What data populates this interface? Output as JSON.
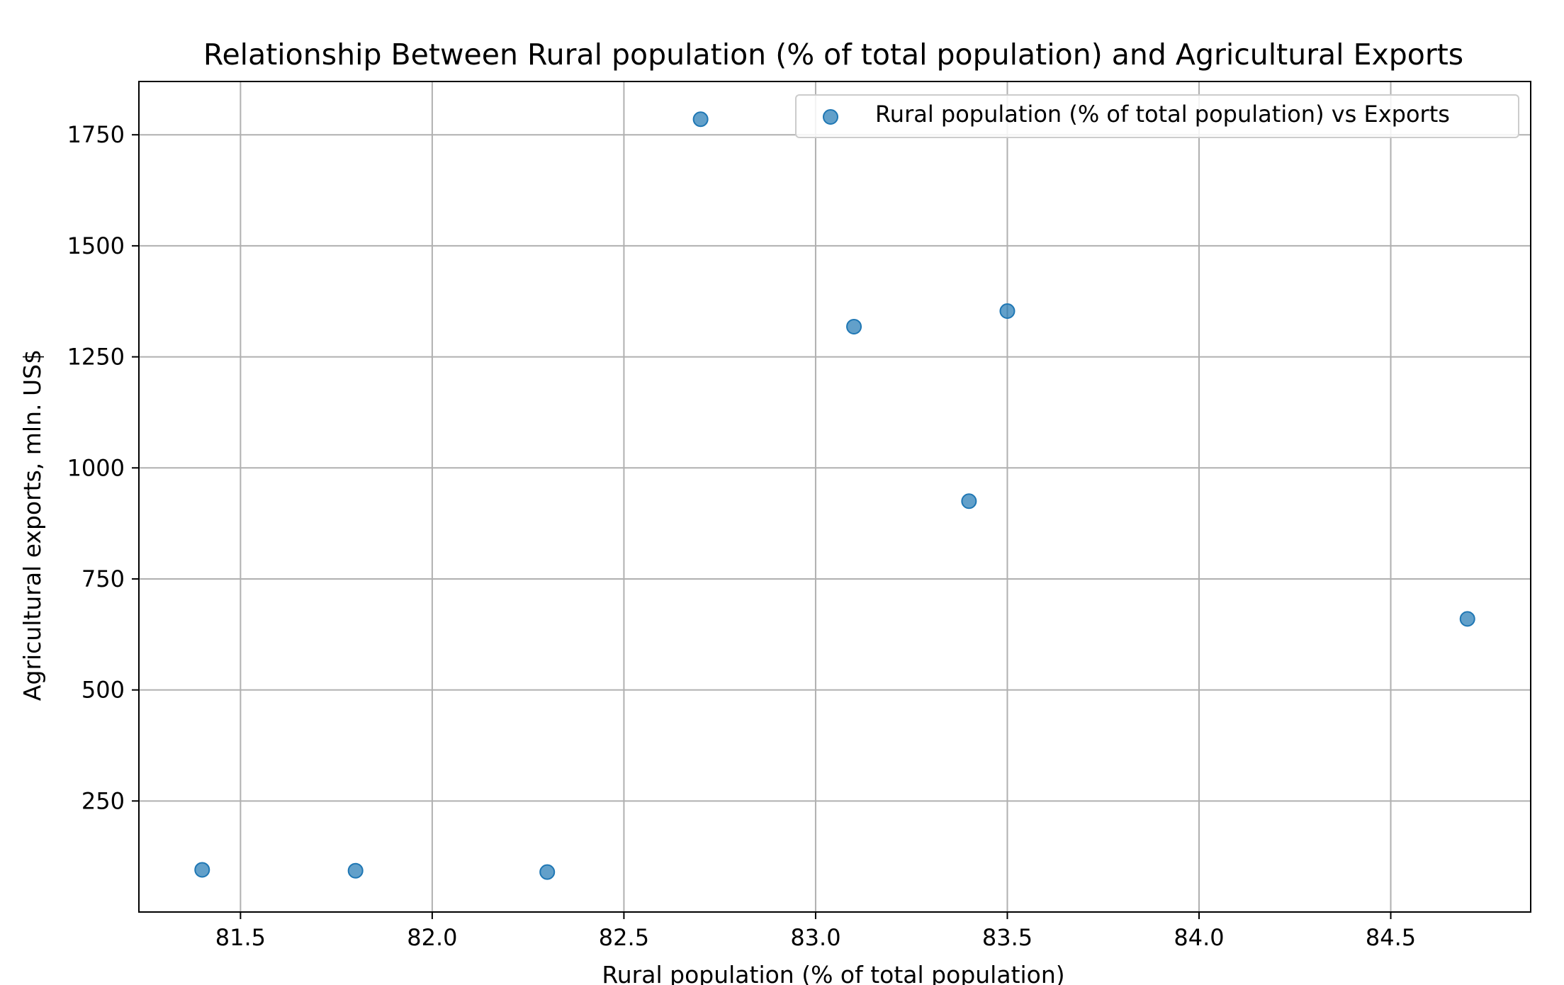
{
  "chart_data": {
    "type": "scatter",
    "title": "Relationship Between Rural population (% of total population) and Agricultural Exports",
    "xlabel": "Rural population (% of total population)",
    "ylabel": "Agricultural exports, mln. US$",
    "xlim": [
      81.235,
      84.865
    ],
    "ylim": [
      0,
      1870
    ],
    "x_ticks": [
      81.5,
      82.0,
      82.5,
      83.0,
      83.5,
      84.0,
      84.5
    ],
    "x_tick_labels": [
      "81.5",
      "82.0",
      "82.5",
      "83.0",
      "83.5",
      "84.0",
      "84.5"
    ],
    "y_ticks": [
      250,
      500,
      750,
      1000,
      1250,
      1500,
      1750
    ],
    "y_tick_labels": [
      "250",
      "500",
      "750",
      "1000",
      "1250",
      "1500",
      "1750"
    ],
    "grid": true,
    "legend_position": "top-right",
    "series": [
      {
        "name": "Rural population (% of total population) vs Exports",
        "color": "#1f77b4",
        "points": [
          {
            "x": 81.4,
            "y": 95
          },
          {
            "x": 81.8,
            "y": 93
          },
          {
            "x": 82.3,
            "y": 90
          },
          {
            "x": 82.7,
            "y": 1785
          },
          {
            "x": 83.1,
            "y": 1318
          },
          {
            "x": 83.4,
            "y": 925
          },
          {
            "x": 83.5,
            "y": 1353
          },
          {
            "x": 84.7,
            "y": 660
          }
        ]
      }
    ]
  }
}
